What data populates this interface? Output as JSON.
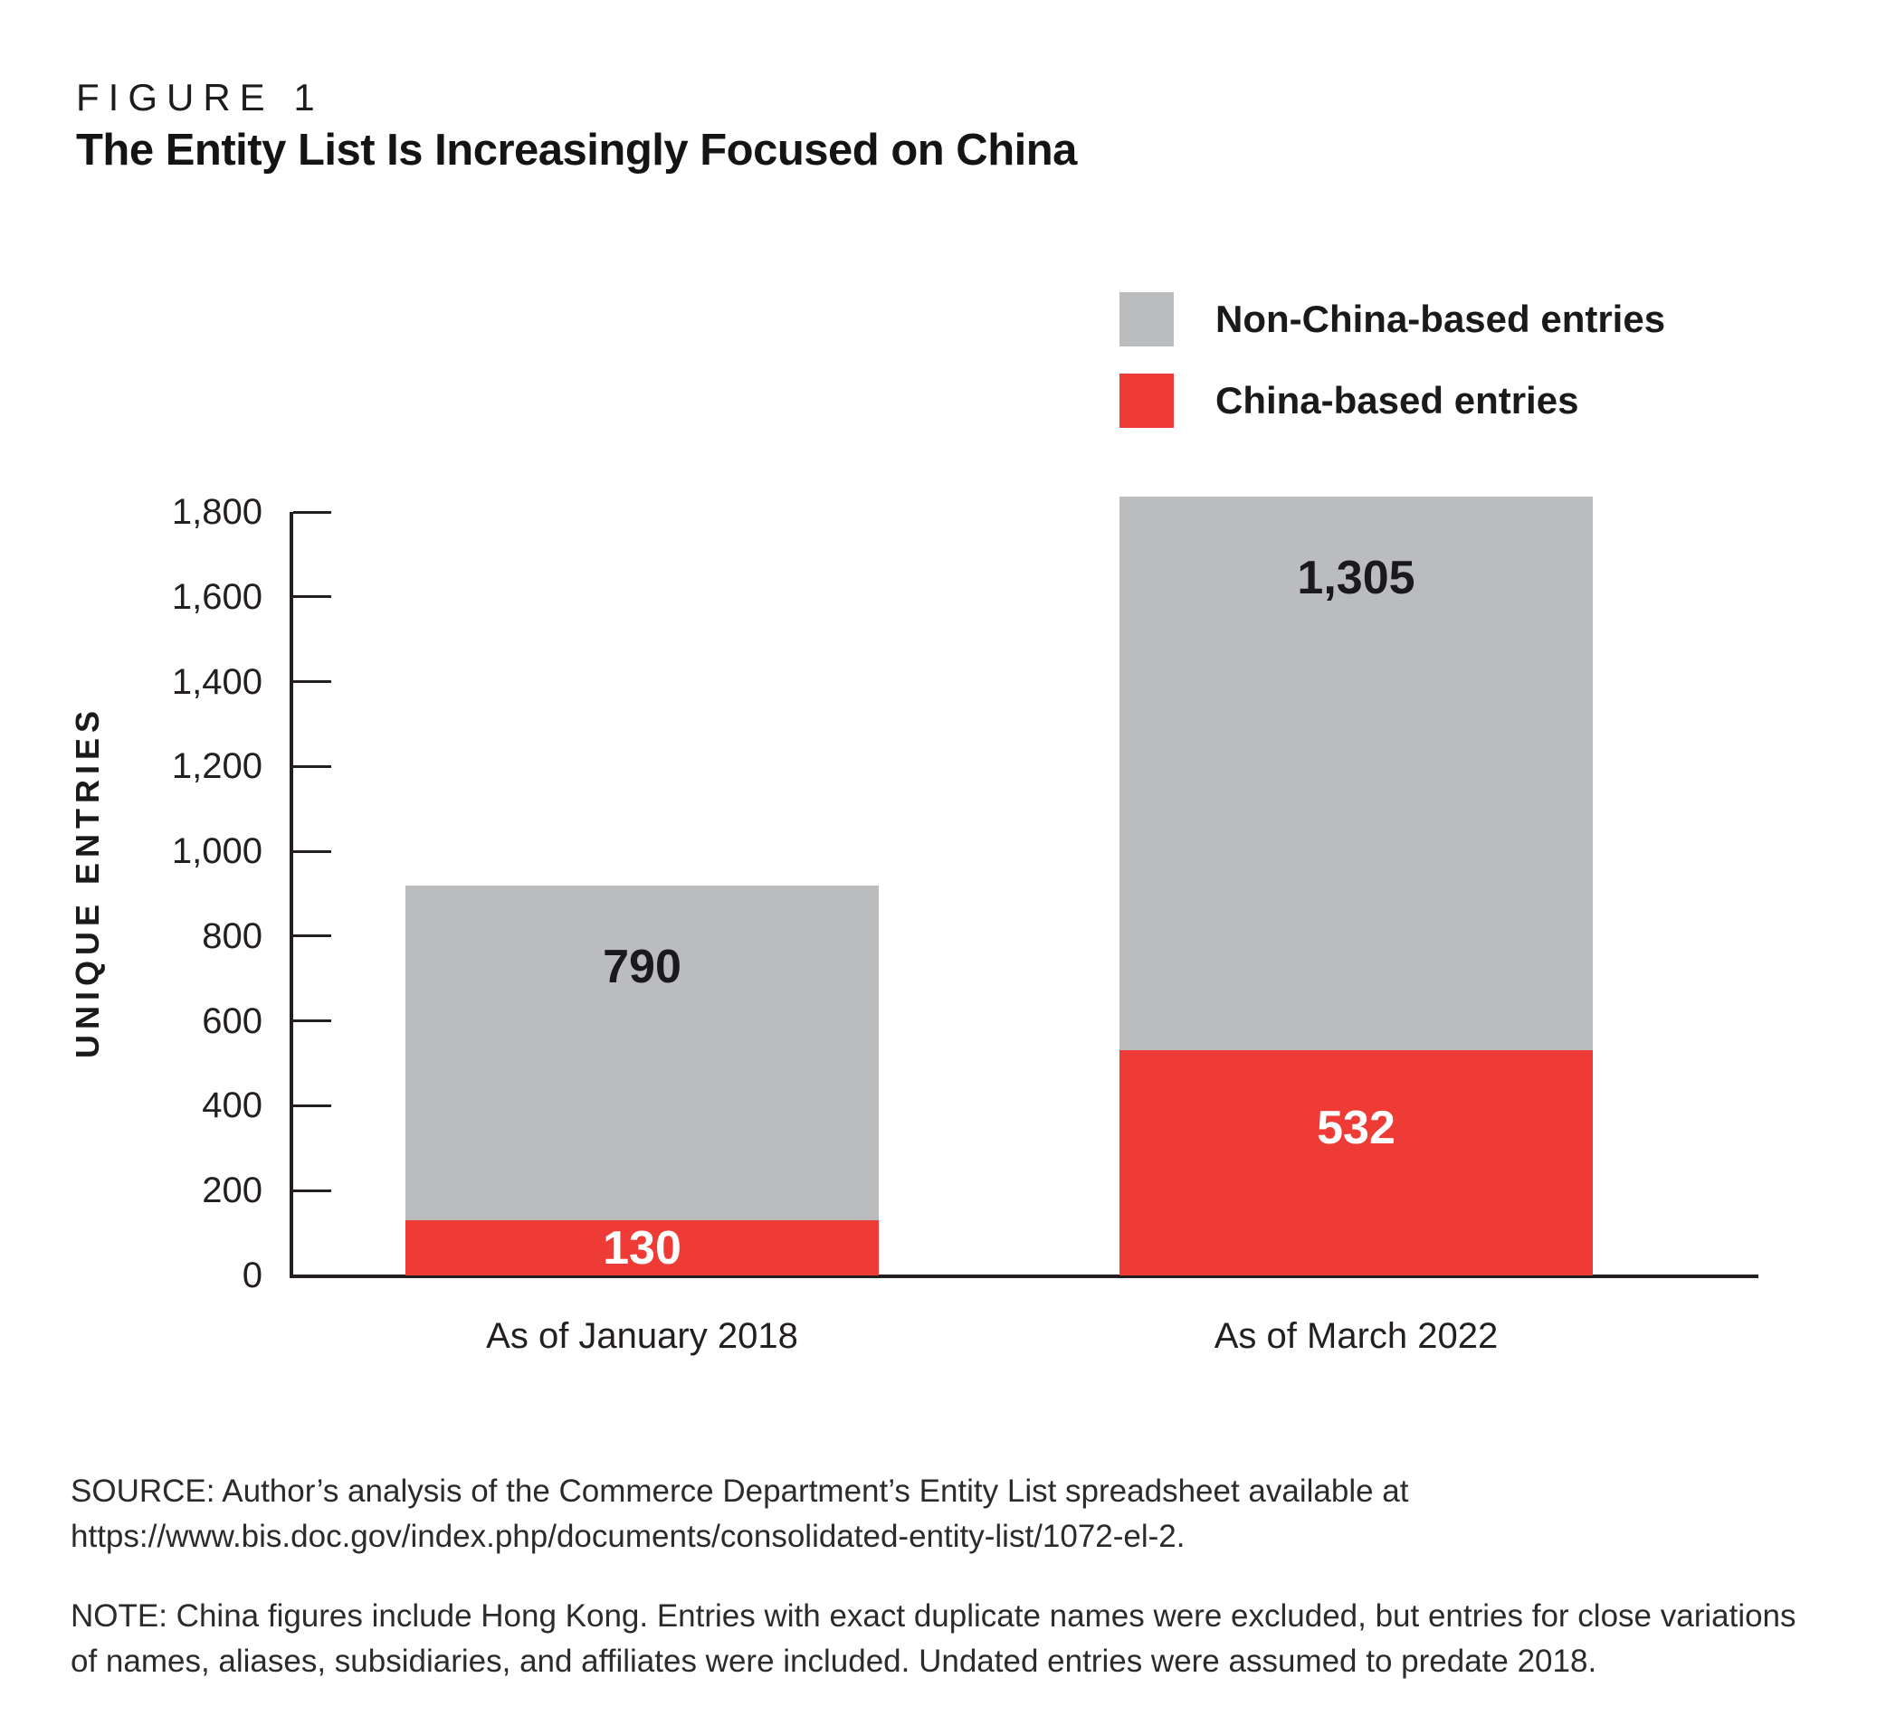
{
  "header": {
    "kicker": "FIGURE 1",
    "title": "The Entity List Is Increasingly Focused on China"
  },
  "legend": {
    "items": [
      {
        "label": "Non-China-based entries",
        "color": "#bbbcbe"
      },
      {
        "label": "China-based entries",
        "color": "#ee3b35"
      }
    ]
  },
  "chart_data": {
    "type": "bar",
    "stacked": true,
    "title": "The Entity List Is Increasingly Focused on China",
    "categories": [
      "As of January 2018",
      "As of March 2022"
    ],
    "series": [
      {
        "name": "China-based entries",
        "color": "#ee3b35",
        "values": [
          130,
          532
        ],
        "display_values": [
          "130",
          "532"
        ]
      },
      {
        "name": "Non-China-based entries",
        "color": "#bbbcbe",
        "values": [
          790,
          1305
        ],
        "display_values": [
          "790",
          "1,305"
        ]
      }
    ],
    "totals": [
      920,
      1837
    ],
    "xlabel": "",
    "ylabel": "UNIQUE ENTRIES",
    "ylim": [
      0,
      1800
    ],
    "ytick_step": 200,
    "ytick_labels": [
      "0",
      "200",
      "400",
      "600",
      "800",
      "1,000",
      "1,200",
      "1,400",
      "1,600",
      "1,800"
    ],
    "grid": false,
    "legend_position": "top-right"
  },
  "footnotes": {
    "source_lines": [
      "SOURCE: Author’s analysis of the Commerce Department’s Entity List spreadsheet available at",
      "https://www.bis.doc.gov/index.php/documents/consolidated-entity-list/1072-el-2."
    ],
    "note_lines": [
      "NOTE: China figures include Hong Kong. Entries with exact duplicate names were excluded, but entries for close variations",
      "of names, aliases, subsidiaries, and affiliates were included. Undated entries were assumed to predate 2018."
    ]
  },
  "colors": {
    "china": "#ee3b35",
    "non_china": "#bbbcbe",
    "ink": "#231f20",
    "axis": "#231f20",
    "background": "#ffffff"
  }
}
